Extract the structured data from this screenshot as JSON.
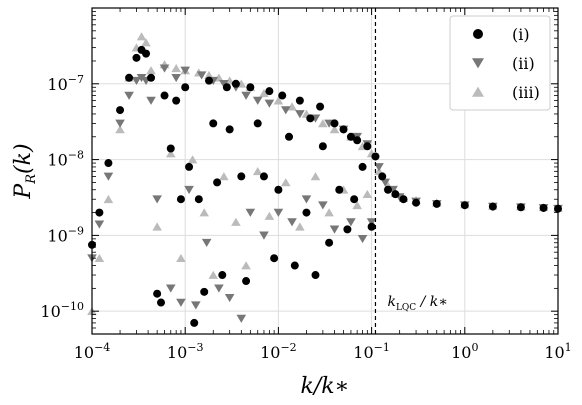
{
  "chart_data": {
    "type": "scatter",
    "xlabel": "k/k*",
    "ylabel": "P_R(k)",
    "xscale": "log",
    "yscale": "log",
    "xlim": [
      0.0001,
      10
    ],
    "ylim": [
      5e-11,
      1e-06
    ],
    "grid": true,
    "legend_position": "top-right",
    "x_ticks": [
      0.0001,
      0.001,
      0.01,
      0.1,
      1,
      10
    ],
    "x_tick_labels": [
      "10^-4",
      "10^-3",
      "10^-2",
      "10^-1",
      "10^0",
      "10^1"
    ],
    "y_ticks": [
      1e-10,
      1e-09,
      1e-08,
      1e-07
    ],
    "y_tick_labels": [
      "10^-10",
      "10^-9",
      "10^-8",
      "10^-7"
    ],
    "vline": {
      "x": 0.11,
      "label": "k_LQC / k*",
      "style": "dashed"
    },
    "series": [
      {
        "name": "(i)",
        "marker": "circle",
        "color": "#000000",
        "points": [
          [
            0.0001,
            7.5e-10
          ],
          [
            0.00012,
            2e-09
          ],
          [
            0.00015,
            9e-09
          ],
          [
            0.0002,
            4.5e-08
          ],
          [
            0.00025,
            1.2e-07
          ],
          [
            0.0003,
            2.2e-07
          ],
          [
            0.00034,
            2.8e-07
          ],
          [
            0.00038,
            2.5e-07
          ],
          [
            0.00043,
            1.2e-07
          ],
          [
            0.0005,
            1.7e-10
          ],
          [
            0.00055,
            1.3e-10
          ],
          [
            0.0006,
            7e-08
          ],
          [
            0.0007,
            1.4e-08
          ],
          [
            0.0008,
            6e-08
          ],
          [
            0.0009,
            3e-09
          ],
          [
            0.001,
            9e-08
          ],
          [
            0.0011,
            8e-09
          ],
          [
            0.00125,
            7e-11
          ],
          [
            0.0014,
            3e-09
          ],
          [
            0.0016,
            1.8e-10
          ],
          [
            0.0018,
            1.1e-07
          ],
          [
            0.002,
            3e-08
          ],
          [
            0.0022,
            5e-09
          ],
          [
            0.0025,
            3e-10
          ],
          [
            0.0028,
            9e-08
          ],
          [
            0.003,
            2.5e-08
          ],
          [
            0.0035,
            1e-07
          ],
          [
            0.004,
            6e-09
          ],
          [
            0.0045,
            2.5e-10
          ],
          [
            0.005,
            9e-08
          ],
          [
            0.006,
            3e-08
          ],
          [
            0.007,
            6e-09
          ],
          [
            0.008,
            8e-08
          ],
          [
            0.009,
            5e-10
          ],
          [
            0.01,
            4e-09
          ],
          [
            0.011,
            7e-08
          ],
          [
            0.013,
            2e-08
          ],
          [
            0.015,
            4e-10
          ],
          [
            0.017,
            6e-08
          ],
          [
            0.02,
            2e-09
          ],
          [
            0.022,
            3.5e-08
          ],
          [
            0.025,
            3e-10
          ],
          [
            0.028,
            5e-08
          ],
          [
            0.03,
            1.5e-08
          ],
          [
            0.035,
            8e-10
          ],
          [
            0.04,
            3e-08
          ],
          [
            0.045,
            4e-09
          ],
          [
            0.05,
            2.5e-08
          ],
          [
            0.055,
            1.2e-09
          ],
          [
            0.06,
            2e-08
          ],
          [
            0.065,
            3e-09
          ],
          [
            0.07,
            1.8e-08
          ],
          [
            0.08,
            8e-09
          ],
          [
            0.09,
            1.5e-08
          ],
          [
            0.1,
            1.3e-09
          ],
          [
            0.11,
            1.1e-08
          ],
          [
            0.13,
            6e-09
          ],
          [
            0.15,
            4e-09
          ],
          [
            0.18,
            3.5e-09
          ],
          [
            0.22,
            3e-09
          ],
          [
            0.3,
            2.7e-09
          ],
          [
            0.5,
            2.6e-09
          ],
          [
            1,
            2.5e-09
          ],
          [
            2,
            2.4e-09
          ],
          [
            4,
            2.35e-09
          ],
          [
            7,
            2.3e-09
          ],
          [
            10,
            2.25e-09
          ]
        ]
      },
      {
        "name": "(ii)",
        "marker": "triangle-down",
        "color": "#777777",
        "points": [
          [
            0.0001,
            5e-10
          ],
          [
            0.00012,
            1.4e-09
          ],
          [
            0.00015,
            6e-09
          ],
          [
            0.0002,
            3e-08
          ],
          [
            0.00025,
            7e-08
          ],
          [
            0.0003,
            1.1e-07
          ],
          [
            0.00034,
            1.2e-07
          ],
          [
            0.00038,
            1.1e-07
          ],
          [
            0.00043,
            6e-08
          ],
          [
            0.0005,
            3e-09
          ],
          [
            0.0006,
            1.6e-07
          ],
          [
            0.0007,
            2e-10
          ],
          [
            0.0008,
            1.2e-07
          ],
          [
            0.0009,
            1.3e-10
          ],
          [
            0.001,
            1.5e-07
          ],
          [
            0.0011,
            4e-09
          ],
          [
            0.0013,
            1.2e-10
          ],
          [
            0.0015,
            1.3e-07
          ],
          [
            0.0017,
            8e-10
          ],
          [
            0.002,
            1.1e-07
          ],
          [
            0.0023,
            2e-10
          ],
          [
            0.0026,
            1e-07
          ],
          [
            0.003,
            1.5e-10
          ],
          [
            0.0035,
            9e-08
          ],
          [
            0.004,
            8e-11
          ],
          [
            0.0045,
            7e-08
          ],
          [
            0.005,
            2e-09
          ],
          [
            0.006,
            6e-08
          ],
          [
            0.007,
            1e-09
          ],
          [
            0.008,
            5.5e-08
          ],
          [
            0.01,
            2e-09
          ],
          [
            0.012,
            4.5e-08
          ],
          [
            0.014,
            1.5e-09
          ],
          [
            0.017,
            4e-08
          ],
          [
            0.02,
            3e-09
          ],
          [
            0.025,
            3.5e-08
          ],
          [
            0.03,
            2.5e-09
          ],
          [
            0.035,
            3e-08
          ],
          [
            0.04,
            1.2e-09
          ],
          [
            0.05,
            2.5e-08
          ],
          [
            0.06,
            1.5e-09
          ],
          [
            0.07,
            2e-08
          ],
          [
            0.08,
            9e-10
          ],
          [
            0.09,
            1.6e-08
          ],
          [
            0.1,
            1.5e-09
          ],
          [
            0.12,
            8e-09
          ],
          [
            0.14,
            5e-09
          ],
          [
            0.17,
            4e-09
          ],
          [
            0.2,
            3.2e-09
          ],
          [
            0.3,
            2.8e-09
          ],
          [
            0.5,
            2.6e-09
          ],
          [
            1,
            2.5e-09
          ],
          [
            2,
            2.4e-09
          ],
          [
            4,
            2.35e-09
          ],
          [
            7,
            2.3e-09
          ],
          [
            10,
            2.25e-09
          ]
        ]
      },
      {
        "name": "(iii)",
        "marker": "triangle-up",
        "color": "#bbbbbb",
        "points": [
          [
            0.0001,
            1e-10
          ],
          [
            0.00012,
            5e-10
          ],
          [
            0.00015,
            3e-09
          ],
          [
            0.0002,
            2.5e-08
          ],
          [
            0.00025,
            1.2e-07
          ],
          [
            0.0003,
            3e-07
          ],
          [
            0.00034,
            4.2e-07
          ],
          [
            0.00038,
            3.5e-07
          ],
          [
            0.00043,
            1.5e-07
          ],
          [
            0.0005,
            1.3e-09
          ],
          [
            0.0006,
            1.8e-07
          ],
          [
            0.0007,
            1.2e-08
          ],
          [
            0.0008,
            1.6e-07
          ],
          [
            0.0009,
            5e-10
          ],
          [
            0.001,
            1.5e-07
          ],
          [
            0.0012,
            1e-08
          ],
          [
            0.0014,
            1.4e-07
          ],
          [
            0.0016,
            2e-09
          ],
          [
            0.0018,
            1.3e-07
          ],
          [
            0.002,
            3e-10
          ],
          [
            0.0023,
            1.2e-07
          ],
          [
            0.0026,
            6e-09
          ],
          [
            0.003,
            1.1e-07
          ],
          [
            0.0035,
            1.5e-09
          ],
          [
            0.004,
            1e-07
          ],
          [
            0.0045,
            4e-10
          ],
          [
            0.005,
            9e-08
          ],
          [
            0.006,
            7e-09
          ],
          [
            0.007,
            7.5e-08
          ],
          [
            0.008,
            1.8e-09
          ],
          [
            0.01,
            6e-08
          ],
          [
            0.012,
            5e-09
          ],
          [
            0.014,
            5e-08
          ],
          [
            0.017,
            1.3e-09
          ],
          [
            0.02,
            4e-08
          ],
          [
            0.025,
            6e-09
          ],
          [
            0.03,
            3e-08
          ],
          [
            0.035,
            2e-09
          ],
          [
            0.04,
            2.5e-08
          ],
          [
            0.05,
            4e-09
          ],
          [
            0.06,
            2e-08
          ],
          [
            0.07,
            2.5e-09
          ],
          [
            0.08,
            1.5e-08
          ],
          [
            0.09,
            3.5e-09
          ],
          [
            0.1,
            1.2e-08
          ],
          [
            0.12,
            7e-09
          ],
          [
            0.15,
            4.5e-09
          ],
          [
            0.18,
            3.6e-09
          ],
          [
            0.22,
            3.1e-09
          ],
          [
            0.3,
            2.9e-09
          ],
          [
            0.5,
            2.7e-09
          ],
          [
            1,
            2.55e-09
          ],
          [
            2,
            2.45e-09
          ],
          [
            4,
            2.4e-09
          ],
          [
            7,
            2.35e-09
          ],
          [
            10,
            2.3e-09
          ]
        ]
      }
    ]
  }
}
